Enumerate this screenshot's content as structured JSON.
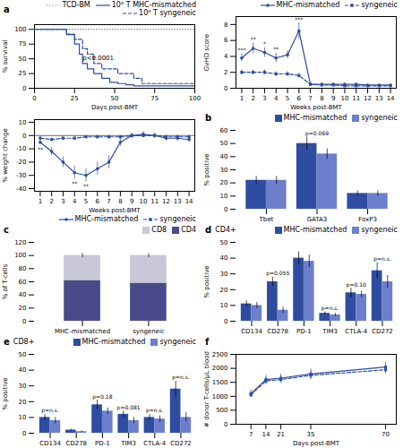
{
  "chart_data": [
    {
      "type": "step",
      "xlabel": "Days post-BMT",
      "ylabel": "% survival",
      "xlim": [
        0,
        100
      ],
      "ylim": [
        0,
        108
      ],
      "xticks": [
        0,
        25,
        50,
        75,
        100
      ],
      "yticks": [
        0,
        25,
        50,
        75,
        100
      ],
      "legend": "upper right",
      "series": [
        {
          "name": "TCD-BM",
          "color": "#888888",
          "line_style": "dotted",
          "x": [
            0,
            100
          ],
          "values": [
            100,
            100
          ]
        },
        {
          "name": "10⁶ T MHC-mismatched",
          "color": "#2E4DA0",
          "line_style": "solid",
          "x": [
            0,
            18,
            20,
            25,
            28,
            30,
            33,
            37,
            42,
            47,
            52,
            57,
            62,
            67,
            100
          ],
          "values": [
            100,
            100,
            91,
            75,
            58,
            42,
            33,
            25,
            17,
            10,
            8,
            6,
            4,
            4,
            4
          ]
        },
        {
          "name": "10⁶ T syngeneic",
          "color": "#2E4DA0",
          "line_style": "dashed",
          "x": [
            0,
            18,
            20,
            25,
            30,
            33,
            37,
            42,
            52,
            62,
            67,
            100
          ],
          "values": [
            100,
            100,
            92,
            83,
            67,
            58,
            42,
            33,
            25,
            17,
            8,
            8
          ]
        }
      ],
      "annotations": [
        {
          "text": "a"
        },
        {
          "text": "p<0.0001",
          "x": 30,
          "y": 48
        }
      ]
    },
    {
      "type": "line",
      "xlabel": "Weeks post-BMT",
      "ylabel": "GvHD score",
      "x": [
        1,
        2,
        3,
        4,
        5,
        6,
        7,
        8,
        9,
        10,
        11,
        12,
        13,
        14
      ],
      "xlim": [
        0.5,
        14.5
      ],
      "xticks": [
        1,
        2,
        3,
        4,
        5,
        6,
        7,
        8,
        9,
        10,
        11,
        12,
        13,
        14
      ],
      "ylim": [
        0,
        9
      ],
      "yticks": [
        0,
        2,
        4,
        6,
        8
      ],
      "legend": "upper right",
      "series": [
        {
          "name": "MHC-mismatched",
          "color": "#2E4DA0",
          "line_style": "solid",
          "marker": "circle",
          "values": [
            3.8,
            5.0,
            4.5,
            3.8,
            4.2,
            7.2,
            0.5,
            0.5,
            0.5,
            0.5,
            0.5,
            0.4,
            0.4,
            0.4
          ],
          "sem": [
            0.5,
            0.7,
            0.6,
            0.6,
            0.5,
            1.0,
            0.15,
            0.12,
            0.12,
            0.12,
            0.12,
            0.1,
            0.1,
            0.1
          ]
        },
        {
          "name": "syngeneic",
          "color": "#2E4DA0",
          "line_style": "dashed",
          "marker": "square",
          "values": [
            2.0,
            2.0,
            2.0,
            1.8,
            1.8,
            1.6,
            0.5,
            0.4,
            0.4,
            0.3,
            0.3,
            0.3,
            0.3,
            0.3
          ],
          "sem": [
            0.3,
            0.3,
            0.3,
            0.3,
            0.3,
            0.3,
            0.1,
            0.1,
            0.1,
            0.1,
            0.1,
            0.1,
            0.1,
            0.1
          ]
        }
      ],
      "annotations": [
        {
          "text": "***",
          "x": 1
        },
        {
          "text": "**",
          "x": 2
        },
        {
          "text": "*",
          "x": 3
        },
        {
          "text": "**",
          "x": 4
        },
        {
          "text": "***",
          "x": 6
        }
      ]
    },
    {
      "type": "line",
      "xlabel": "Weeks post-BMT",
      "ylabel": "% weight change",
      "x": [
        1,
        2,
        3,
        4,
        5,
        6,
        7,
        8,
        9,
        10,
        11,
        12,
        13,
        14
      ],
      "xlim": [
        0.5,
        14.5
      ],
      "xticks": [
        1,
        2,
        3,
        4,
        5,
        6,
        7,
        8,
        9,
        10,
        11,
        12,
        13,
        14
      ],
      "ylim": [
        -42,
        12
      ],
      "yticks": [
        -40,
        -30,
        -20,
        -10,
        0,
        10
      ],
      "legend": "lower right",
      "series": [
        {
          "name": "MHC-mismatched",
          "color": "#2E4DA0",
          "line_style": "solid",
          "marker": "circle",
          "values": [
            -5,
            -12,
            -20,
            -28,
            -30,
            -25,
            -20,
            -5,
            0,
            1,
            0,
            -2,
            -2,
            -3
          ],
          "sem": [
            2,
            3,
            4,
            5,
            5,
            5,
            5,
            3,
            2,
            2,
            2,
            2,
            2,
            2
          ]
        },
        {
          "name": "syngeneic",
          "color": "#2E4DA0",
          "line_style": "dashed",
          "marker": "square",
          "values": [
            -2,
            -3,
            -2,
            -2,
            -1,
            -1,
            -1,
            -1,
            0,
            0,
            0,
            -1,
            -1,
            -1
          ],
          "sem": [
            1,
            1,
            1,
            1,
            1,
            1,
            1,
            1,
            1,
            1,
            1,
            1,
            1,
            1
          ]
        }
      ],
      "annotations": [
        {
          "type": "hline",
          "y": 0
        },
        {
          "text": "**",
          "x": 1
        },
        {
          "text": "**",
          "x": 4
        },
        {
          "text": "**",
          "x": 5
        }
      ]
    },
    {
      "type": "bar",
      "ylabel": "% positive",
      "categories": [
        "Tbet",
        "GATA3",
        "FoxP3"
      ],
      "ylim": [
        0,
        60
      ],
      "yticks": [
        0,
        10,
        20,
        30,
        40,
        50,
        60
      ],
      "legend": "upper right",
      "series": [
        {
          "name": "MHC-mismatched",
          "color": "#2E4DA0",
          "values": [
            22,
            50,
            12
          ],
          "sem": [
            3,
            5,
            2
          ]
        },
        {
          "name": "syngeneic",
          "color": "#6B7FCC",
          "values": [
            22,
            42,
            12
          ],
          "sem": [
            3,
            4,
            2
          ]
        }
      ],
      "annotations": [
        {
          "text": "b"
        },
        {
          "text": "p=0.069",
          "x": "GATA3"
        }
      ]
    },
    {
      "type": "bar",
      "stacked": true,
      "ylabel": "% of T-cells",
      "categories": [
        "MHC-mismatched",
        "syngeneic"
      ],
      "ylim": [
        0,
        120
      ],
      "yticks": [
        0,
        20,
        40,
        60,
        80,
        100,
        120
      ],
      "legend": "upper right",
      "series": [
        {
          "name": "CD4",
          "color": "#4A4A8A",
          "values": [
            62,
            58
          ]
        },
        {
          "name": "CD8",
          "color": "#C8C8D8",
          "values": [
            38,
            42
          ],
          "sem": [
            3,
            3
          ]
        }
      ],
      "annotations": [
        {
          "text": "c"
        }
      ]
    },
    {
      "type": "bar",
      "title": "CD4+",
      "ylabel": "% positive",
      "categories": [
        "CD134",
        "CD278",
        "PD-1",
        "TIM3",
        "CTLA-4",
        "CD272"
      ],
      "ylim": [
        0,
        50
      ],
      "yticks": [
        0,
        10,
        20,
        30,
        40,
        50
      ],
      "legend": "upper right",
      "series": [
        {
          "name": "MHC-mismatched",
          "color": "#2E4DA0",
          "values": [
            11,
            25,
            40,
            5,
            18,
            32
          ],
          "sem": [
            2,
            3,
            4,
            1,
            3,
            5
          ]
        },
        {
          "name": "syngeneic",
          "color": "#6B7FCC",
          "values": [
            10,
            7,
            38,
            4,
            17,
            25
          ],
          "sem": [
            2,
            2,
            4,
            1,
            2,
            4
          ]
        }
      ],
      "annotations": [
        {
          "text": "d"
        },
        {
          "text": "p=0.055",
          "x": "CD278"
        },
        {
          "text": "p=n.s.",
          "x": "TIM3"
        },
        {
          "text": "p=0.10",
          "x": "CTLA-4"
        },
        {
          "text": "p=n.s.",
          "x": "CD272"
        }
      ]
    },
    {
      "type": "bar",
      "title": "CD8+",
      "ylabel": "% positive",
      "categories": [
        "CD134",
        "CD278",
        "PD-1",
        "TIM3",
        "CTLA-4",
        "CD272"
      ],
      "ylim": [
        0,
        50
      ],
      "yticks": [
        0,
        10,
        20,
        30,
        40,
        50
      ],
      "legend": "upper right",
      "series": [
        {
          "name": "MHC-mismatched",
          "color": "#2E4DA0",
          "values": [
            10,
            2,
            18,
            12,
            10,
            28
          ],
          "sem": [
            2,
            0.5,
            3,
            2,
            2,
            5
          ]
        },
        {
          "name": "syngeneic",
          "color": "#6B7FCC",
          "values": [
            8,
            1,
            14,
            8,
            9,
            10
          ],
          "sem": [
            2,
            0.5,
            2,
            2,
            2,
            3
          ]
        }
      ],
      "annotations": [
        {
          "text": "e"
        },
        {
          "text": "p=n.s.",
          "x": "CD134"
        },
        {
          "text": "p=0.18",
          "x": "PD-1"
        },
        {
          "text": "p=0.081",
          "x": "TIM3"
        },
        {
          "text": "p=n.s.",
          "x": "CTLA-4"
        },
        {
          "text": "p=n.s.",
          "x": "CD272"
        }
      ]
    },
    {
      "type": "line",
      "xlabel": "Days post-BMT",
      "ylabel": "# donor T-cells/μL blood",
      "x": [
        7,
        14,
        21,
        35,
        70
      ],
      "xlim": [
        0,
        75
      ],
      "xticks": [
        7,
        14,
        21,
        35,
        70
      ],
      "ylim": [
        0,
        2500
      ],
      "yticks": [
        0,
        500,
        1000,
        1500,
        2000,
        2500
      ],
      "series": [
        {
          "color": "#2E4DA0",
          "line_style": "solid",
          "marker": "circle",
          "values": [
            1100,
            1600,
            1650,
            1800,
            2050
          ],
          "sem": [
            120,
            150,
            150,
            180,
            180
          ]
        },
        {
          "color": "#2E4DA0",
          "line_style": "dashed",
          "marker": "square",
          "values": [
            1050,
            1550,
            1600,
            1750,
            1950
          ],
          "sem": [
            100,
            130,
            130,
            150,
            150
          ]
        }
      ],
      "annotations": [
        {
          "text": "f"
        }
      ]
    }
  ]
}
